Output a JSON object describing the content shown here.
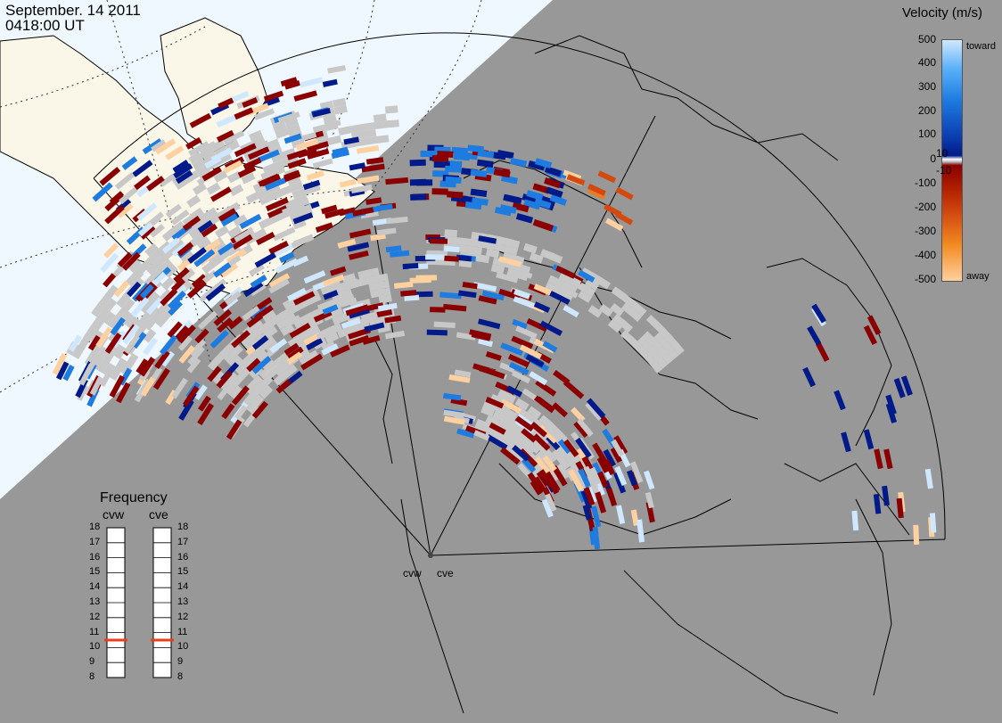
{
  "header": {
    "date": "September. 14 2011",
    "time": "0418:00 UT"
  },
  "velocity_scale": {
    "title": "Velocity (m/s)",
    "ticks": [
      "500",
      "400",
      "300",
      "200",
      "100",
      "10",
      "0",
      "-10",
      "-100",
      "-200",
      "-300",
      "-400",
      "-500"
    ],
    "toward_label": "toward",
    "away_label": "away",
    "colors": {
      "toward_light": "#cfe8ff",
      "toward_mid": "#1e7be0",
      "toward_dark": "#001a8a",
      "ground_scatter": "#c8c8c8",
      "away_dark": "#8a0000",
      "away_mid": "#d24a10",
      "away_light": "#ffd0a0"
    }
  },
  "frequency": {
    "title": "Frequency",
    "radars": [
      {
        "name": "cvw",
        "value_mhz": 10.5
      },
      {
        "name": "cve",
        "value_mhz": 10.5
      }
    ],
    "ticks": [
      "18",
      "17",
      "16",
      "15",
      "14",
      "13",
      "12",
      "11",
      "10",
      "9",
      "8"
    ],
    "indicator_color": "#e8401a"
  },
  "radar_labels": [
    "cvw",
    "cve"
  ],
  "map": {
    "day_color": "#f0f8ff",
    "land_color": "#fbf7e8",
    "night_color": "#989898"
  }
}
